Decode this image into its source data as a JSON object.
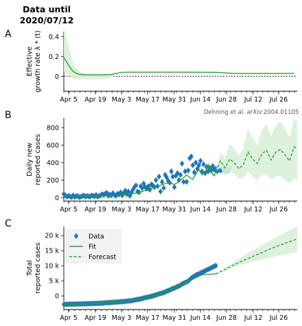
{
  "title": "Data until\n2020/07/12",
  "title_line1": "Data until",
  "title_line2": "2020/07/12",
  "panel_letters": [
    "A",
    "B",
    "C"
  ],
  "attribution": "Dehning et al. arXiv:2004.01105",
  "colors": {
    "data": "#1f77b4",
    "fit": "#2ca02c",
    "band": "#d9efd9",
    "threshold": "#000000"
  },
  "chart_data": [
    {
      "type": "line",
      "panel": "A",
      "ylabel": "Effective\ngrowth rate λ * (t)",
      "ylabel_line1": "Effective",
      "ylabel_line2": "growth rate λ * (t)",
      "xticklabels": [
        "Apr 5",
        "Apr 19",
        "May 3",
        "May 17",
        "May 31",
        "Jun 14",
        "Jun 28",
        "Jul 12",
        "Jul 26"
      ],
      "yticks": [
        0.0,
        0.2,
        0.4
      ],
      "ylim": [
        -0.15,
        0.45
      ],
      "reference_line": {
        "y": 0.0,
        "style": "dotted"
      },
      "series": [
        {
          "style": "solid",
          "x_days": [
            0,
            2,
            4,
            6,
            8,
            10,
            14,
            18,
            24,
            30,
            34,
            38,
            42,
            48,
            60,
            80,
            100,
            110,
            120,
            150
          ],
          "values": [
            0.19,
            0.14,
            0.09,
            0.05,
            0.03,
            0.02,
            0.015,
            0.015,
            0.015,
            0.017,
            0.03,
            0.04,
            0.042,
            0.042,
            0.042,
            0.042,
            0.04,
            0.03,
            0.03,
            0.03
          ],
          "band_lower": [
            0.05,
            0.02,
            0.0,
            -0.02,
            -0.03,
            -0.03,
            -0.03,
            -0.03,
            -0.03,
            -0.02,
            0.03,
            0.04,
            0.042,
            0.042,
            0.042,
            0.042,
            0.04,
            0.03,
            0.03,
            0.03
          ],
          "band_upper": [
            0.44,
            0.38,
            0.25,
            0.14,
            0.08,
            0.05,
            0.03,
            0.025,
            0.025,
            0.03,
            0.035,
            0.042,
            0.042,
            0.042,
            0.042,
            0.042,
            0.04,
            0.03,
            0.03,
            0.03
          ]
        }
      ]
    },
    {
      "type": "scatter",
      "panel": "B",
      "ylabel": "Daily new\nreported cases",
      "ylabel_line1": "Daily new",
      "ylabel_line2": "reported cases",
      "xticklabels": [
        "Apr 5",
        "Apr 19",
        "May 3",
        "May 17",
        "May 31",
        "Jun 14",
        "Jun 28",
        "Jul 12",
        "Jul 26"
      ],
      "yticks": [
        0,
        200,
        400,
        600,
        800
      ],
      "ylim": [
        -40,
        910
      ],
      "series": [
        {
          "name": "Data",
          "style": "diamond",
          "x_days": [
            0,
            1,
            2,
            3,
            4,
            5,
            6,
            7,
            8,
            9,
            10,
            11,
            12,
            13,
            14,
            15,
            16,
            17,
            18,
            19,
            20,
            21,
            22,
            23,
            24,
            25,
            26,
            27,
            28,
            29,
            30,
            31,
            32,
            33,
            34,
            35,
            36,
            37,
            38,
            39,
            40,
            41,
            42,
            43,
            44,
            45,
            46,
            47,
            48,
            49,
            50,
            51,
            52,
            53,
            54,
            55,
            56,
            57,
            58,
            59,
            60,
            61,
            62,
            63,
            64,
            65,
            66,
            67,
            68,
            69,
            70,
            71,
            72,
            73,
            74,
            75,
            76,
            77,
            78,
            79,
            80,
            81,
            82,
            83,
            84,
            85,
            86,
            87,
            88,
            89,
            90,
            91,
            92,
            93,
            94,
            95,
            96,
            97,
            98,
            99,
            100,
            101,
            102,
            103,
            104,
            105,
            106,
            107,
            108
          ],
          "values": [
            40,
            25,
            10,
            20,
            15,
            5,
            25,
            10,
            15,
            20,
            5,
            10,
            15,
            25,
            10,
            20,
            15,
            10,
            25,
            20,
            15,
            30,
            10,
            20,
            25,
            40,
            30,
            45,
            55,
            20,
            35,
            25,
            50,
            30,
            20,
            45,
            35,
            60,
            25,
            50,
            80,
            40,
            70,
            20,
            55,
            90,
            120,
            140,
            70,
            60,
            130,
            110,
            160,
            120,
            100,
            130,
            90,
            150,
            140,
            120,
            200,
            130,
            240,
            70,
            180,
            110,
            260,
            230,
            190,
            170,
            300,
            240,
            120,
            250,
            280,
            200,
            260,
            390,
            180,
            300,
            180,
            310,
            450,
            470,
            370,
            290,
            400,
            330,
            370,
            420,
            300,
            380,
            280,
            350,
            300,
            340,
            310,
            360,
            320,
            330,
            300,
            340,
            310,
            320,
            330,
            300,
            320,
            310,
            330
          ]
        },
        {
          "name": "Fit",
          "style": "solid",
          "x_days": [
            0,
            7,
            14,
            21,
            28,
            35,
            42,
            49,
            56,
            63,
            66,
            69,
            72,
            75,
            78,
            80,
            82,
            84,
            86,
            88,
            90,
            92,
            94,
            96,
            98,
            99
          ],
          "values": [
            25,
            18,
            15,
            18,
            20,
            25,
            35,
            60,
            100,
            140,
            160,
            170,
            150,
            185,
            230,
            260,
            230,
            210,
            270,
            320,
            260,
            280,
            380,
            290,
            250,
            300
          ]
        },
        {
          "name": "Forecast",
          "style": "dashed",
          "x_days": [
            99,
            102,
            105,
            108,
            111,
            114,
            117,
            120,
            123,
            126,
            129,
            132,
            135,
            138,
            141,
            144,
            147,
            150,
            152
          ],
          "values": [
            300,
            420,
            340,
            440,
            400,
            330,
            380,
            520,
            440,
            390,
            500,
            540,
            430,
            520,
            550,
            490,
            420,
            580,
            560
          ],
          "band_lower": [
            300,
            340,
            250,
            300,
            270,
            220,
            220,
            300,
            240,
            200,
            260,
            270,
            200,
            240,
            250,
            200,
            160,
            220,
            190
          ],
          "band_upper": [
            300,
            520,
            450,
            620,
            560,
            480,
            560,
            780,
            680,
            600,
            770,
            840,
            700,
            820,
            870,
            790,
            690,
            900,
            880
          ]
        }
      ]
    },
    {
      "type": "scatter",
      "panel": "C",
      "ylabel": "Total\nreported cases",
      "ylabel_line1": "Total",
      "ylabel_line2": "reported cases",
      "xticklabels": [
        "Apr 5",
        "Apr 19",
        "May 3",
        "May 17",
        "May 31",
        "Jun 14",
        "Jun 28",
        "Jul 12",
        "Jul 26"
      ],
      "yticks": [
        0,
        5000,
        10000,
        15000,
        20000
      ],
      "yticklabels": [
        "0",
        "5 k",
        "10 k",
        "15 k",
        "20 k"
      ],
      "ylim": [
        -4500,
        23000
      ],
      "legend": [
        "Data",
        "Fit",
        "Forecast"
      ],
      "legend_position": "upper-left",
      "series": [
        {
          "name": "Data",
          "style": "diamond",
          "x_days": [
            0,
            1,
            2,
            3,
            4,
            5,
            6,
            7,
            8,
            9,
            10,
            11,
            12,
            13,
            14,
            15,
            16,
            17,
            18,
            19,
            20,
            21,
            22,
            23,
            24,
            25,
            26,
            27,
            28,
            29,
            30,
            31,
            32,
            33,
            34,
            35,
            36,
            37,
            38,
            39,
            40,
            41,
            42,
            43,
            44,
            45,
            46,
            47,
            48,
            49,
            50,
            51,
            52,
            53,
            54,
            55,
            56,
            57,
            58,
            59,
            60,
            61,
            62,
            63,
            64,
            65,
            66,
            67,
            68,
            69,
            70,
            71,
            72,
            73,
            74,
            75,
            76,
            77,
            78,
            79,
            80,
            81,
            82,
            83,
            84,
            85,
            86,
            87,
            88,
            89,
            90,
            91,
            92,
            93,
            94,
            95,
            96,
            97,
            98,
            99
          ],
          "values": [
            -2800,
            -2780,
            -2770,
            -2750,
            -2740,
            -2735,
            -2710,
            -2700,
            -2685,
            -2665,
            -2660,
            -2650,
            -2635,
            -2610,
            -2600,
            -2580,
            -2565,
            -2555,
            -2530,
            -2510,
            -2495,
            -2465,
            -2455,
            -2435,
            -2410,
            -2370,
            -2340,
            -2295,
            -2240,
            -2220,
            -2185,
            -2160,
            -2110,
            -2080,
            -2060,
            -2015,
            -1980,
            -1920,
            -1895,
            -1845,
            -1765,
            -1725,
            -1655,
            -1635,
            -1580,
            -1490,
            -1370,
            -1230,
            -1160,
            -1100,
            -970,
            -860,
            -700,
            -580,
            -480,
            -350,
            -260,
            -110,
            30,
            150,
            350,
            480,
            720,
            790,
            970,
            1080,
            1340,
            1570,
            1760,
            1930,
            2230,
            2470,
            2590,
            2840,
            3120,
            3320,
            3580,
            3970,
            4150,
            4450,
            4630,
            4940,
            5390,
            5860,
            6230,
            6520,
            6920,
            7080,
            7320,
            7560,
            7800,
            8060,
            8300,
            8560,
            8800,
            9050,
            9300,
            9550,
            9800,
            10050
          ]
        },
        {
          "name": "Fit",
          "style": "solid",
          "x_days": [
            0,
            10,
            20,
            30,
            40,
            50,
            60,
            70,
            80,
            90,
            99
          ],
          "values": [
            -2800,
            -2660,
            -2500,
            -2200,
            -1800,
            -1000,
            150,
            2200,
            4600,
            7000,
            7300
          ]
        },
        {
          "name": "Forecast",
          "style": "dashed",
          "x_days": [
            99,
            105,
            110,
            115,
            120,
            125,
            130,
            135,
            140,
            145,
            150,
            152
          ],
          "values": [
            7300,
            8800,
            10100,
            11300,
            12400,
            13500,
            14600,
            15700,
            16700,
            17600,
            18500,
            18900
          ],
          "band_lower": [
            7300,
            8400,
            9400,
            10200,
            10900,
            11600,
            12200,
            12800,
            13300,
            13800,
            14300,
            14500
          ],
          "band_upper": [
            7300,
            9300,
            11000,
            12600,
            14100,
            15600,
            17100,
            18500,
            19900,
            21200,
            22500,
            23000
          ]
        }
      ]
    }
  ]
}
